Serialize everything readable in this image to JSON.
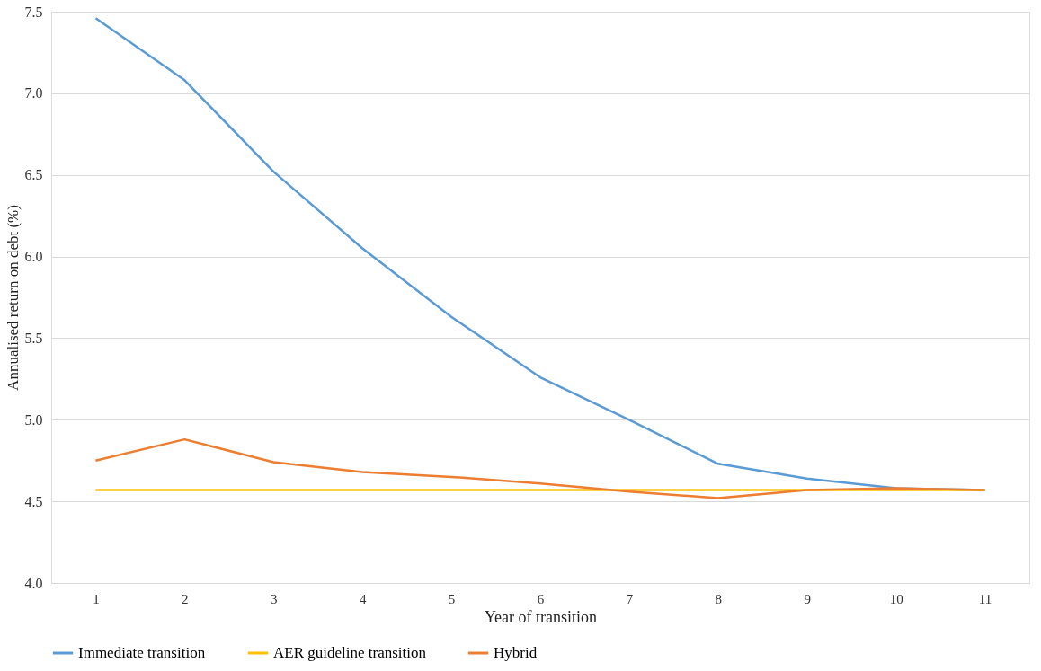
{
  "chart_data": {
    "type": "line",
    "xlabel": "Year of transition",
    "ylabel": "Annualised return on debt (%)",
    "categories": [
      "1",
      "2",
      "3",
      "4",
      "5",
      "6",
      "7",
      "8",
      "9",
      "10",
      "11"
    ],
    "series": [
      {
        "name": "Immediate transition",
        "color": "#5b9bd5",
        "values": [
          7.46,
          7.08,
          6.52,
          6.05,
          5.63,
          5.26,
          5.0,
          4.73,
          4.64,
          4.58,
          4.57
        ]
      },
      {
        "name": "AER guideline transition",
        "color": "#ffc000",
        "values": [
          4.57,
          4.57,
          4.57,
          4.57,
          4.57,
          4.57,
          4.57,
          4.57,
          4.57,
          4.57,
          4.57
        ]
      },
      {
        "name": "Hybrid",
        "color": "#ed7d31",
        "values": [
          4.75,
          4.88,
          4.74,
          4.68,
          4.65,
          4.61,
          4.56,
          4.52,
          4.57,
          4.58,
          4.57
        ]
      }
    ],
    "ylim": [
      4.0,
      7.5
    ],
    "yticks": [
      {
        "value": 4,
        "label": "4.0"
      },
      4.5,
      {
        "value": 5,
        "label": "5.0"
      },
      5.5,
      {
        "value": 6,
        "label": "6.0"
      },
      6.5,
      {
        "value": 7,
        "label": "7.0"
      },
      7.5
    ],
    "grid": "y",
    "legend": "bottom",
    "marker": "none",
    "line_style": "solid"
  }
}
